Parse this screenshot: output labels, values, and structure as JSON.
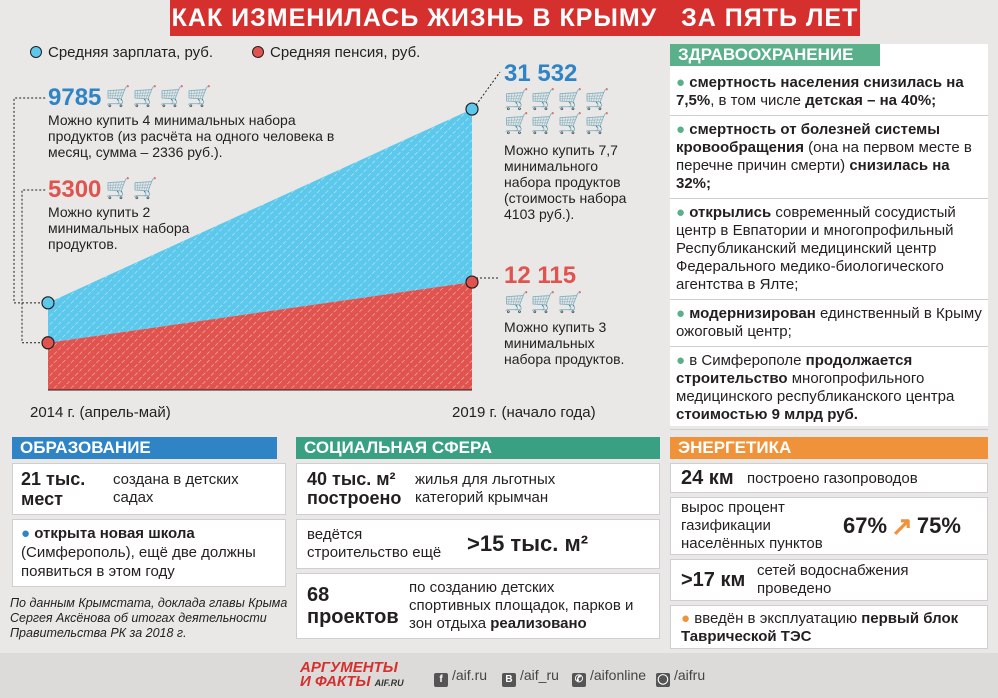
{
  "title": "КАК ИЗМЕНИЛАСЬ ЖИЗНЬ В КРЫМУ   ЗА ПЯТЬ ЛЕТ",
  "legend": {
    "salary": "Средняя зарплата, руб.",
    "pension": "Средняя пенсия, руб."
  },
  "colors": {
    "salary": "#5cc8ec",
    "pension": "#e0534e",
    "health": "#5bb08c",
    "education": "#2f84c6",
    "energy": "#f0923a",
    "title": "#d5302d"
  },
  "chart_data": {
    "type": "area",
    "x": [
      "2014 г. (апрель-май)",
      "2019 г. (начало года)"
    ],
    "series": [
      {
        "name": "Средняя зарплата, руб.",
        "values": [
          9785,
          31532
        ]
      },
      {
        "name": "Средняя пенсия, руб.",
        "values": [
          5300,
          12115
        ]
      }
    ],
    "ylim": [
      0,
      33000
    ],
    "grid": false
  },
  "callouts": {
    "salary_2014": {
      "value": "9785",
      "carts": 4,
      "text": "Можно купить 4 минимальных набора продуктов (из расчёта на одного человека в месяц, сумма – 2336 руб.)."
    },
    "pension_2014": {
      "value": "5300",
      "carts": 2,
      "text": "Можно купить 2 минимальных набора продуктов."
    },
    "salary_2019": {
      "value": "31 532",
      "carts": 8,
      "text": "Можно купить 7,7 минимального набора продуктов (стоимость набора 4103 руб.)."
    },
    "pension_2019": {
      "value": "12 115",
      "carts": 3,
      "text": "Можно купить 3 минимальных набора продуктов."
    }
  },
  "health": {
    "heading": "ЗДРАВООХРАНЕНИЕ",
    "items": [
      {
        "parts": [
          {
            "t": "смертность населения снизилась на 7,5%",
            "b": true
          },
          {
            "t": ", в том числе ",
            "b": false
          },
          {
            "t": "детская – на 40%;",
            "b": true
          }
        ]
      },
      {
        "parts": [
          {
            "t": "смертность от болезней системы кровообращения",
            "b": true
          },
          {
            "t": " (она на первом месте в перечне причин смерти) ",
            "b": false
          },
          {
            "t": "снизилась на 32%;",
            "b": true
          }
        ]
      },
      {
        "parts": [
          {
            "t": "открылись",
            "b": true
          },
          {
            "t": " современный сосудистый центр в Евпатории и многопрофильный Республиканский медицинский центр Федерального медико-биологического агентства в Ялте;",
            "b": false
          }
        ]
      },
      {
        "parts": [
          {
            "t": "модернизирован",
            "b": true
          },
          {
            "t": " единственный в Крыму ожоговый центр;",
            "b": false
          }
        ]
      },
      {
        "parts": [
          {
            "t": "в Симферополе ",
            "b": false
          },
          {
            "t": "продолжается строительство",
            "b": true
          },
          {
            "t": " многопрофильного медицинского республиканского центра ",
            "b": false
          },
          {
            "t": "стоимостью 9 млрд руб.",
            "b": true
          }
        ]
      }
    ]
  },
  "education": {
    "heading": "ОБРАЗОВАНИЕ",
    "stat_value": "21 тыс. мест",
    "stat_text": "создана в детских садах",
    "school_bold": "открыта новая школа",
    "school_rest": " (Симферополь), ещё две должны появиться в этом году"
  },
  "social": {
    "heading": "СОЦИАЛЬНАЯ СФЕРА",
    "r1_value": "40 тыс. м² построено",
    "r1_text": "жилья для льготных категорий крымчан",
    "r2_text": "ведётся строительство ещё",
    "r2_value": ">15 тыс. м²",
    "r3_value": "68 проектов",
    "r3_text": "по созданию детских спортивных площадок, парков и зон отдыха ",
    "r3_bold": "реализовано"
  },
  "energy": {
    "heading": "ЭНЕРГЕТИКА",
    "r1_value": "24 км",
    "r1_text": "построено газопроводов",
    "r2_text": "вырос процент газификации населённых пунктов",
    "r2_from": "67%",
    "r2_to": "75%",
    "r3_value": ">17 км",
    "r3_text": "сетей водоснабжения проведено",
    "r4_text": "введён в эксплуатацию ",
    "r4_bold": "первый блок Таврической ТЭС"
  },
  "source": "По данным Крымстата, доклада главы Крыма Сергея Аксёнова об итогах деятельности Правительства РК за 2018 г.",
  "footer": {
    "logo1": "АРГУМЕНТЫ",
    "logo2": "И ФАКТЫ",
    "logo_domain": "AIF.RU",
    "social": [
      "/aif.ru",
      "/aif_ru",
      "/aifonline",
      "/aifru"
    ],
    "social_badges": [
      "f",
      "B",
      "✆",
      "◯"
    ]
  }
}
